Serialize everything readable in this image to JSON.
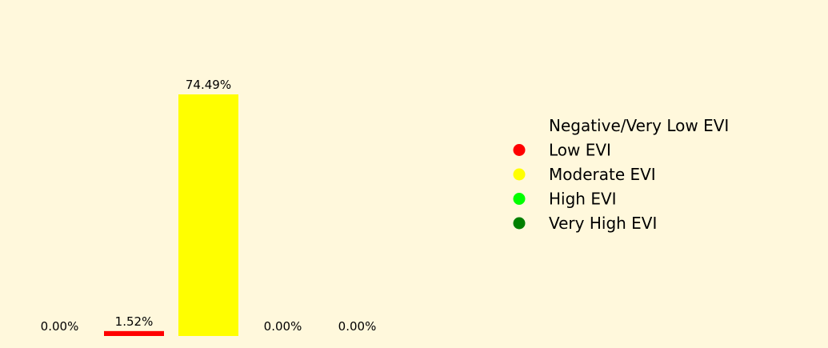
{
  "chart_data": {
    "type": "bar",
    "categories": [
      "Negative/Very Low EVI",
      "Low EVI",
      "Moderate EVI",
      "High EVI",
      "Very High EVI"
    ],
    "values": [
      0.0,
      1.52,
      74.49,
      0.0,
      0.0
    ],
    "value_labels": [
      "0.00%",
      "1.52%",
      "74.49%",
      "0.00%",
      "0.00%"
    ],
    "colors": [
      "#fff8dc",
      "#ff0000",
      "#ffff00",
      "#00ff00",
      "#008000"
    ],
    "ylim": [
      0,
      80
    ],
    "grid": false,
    "axes_visible": false,
    "legend": {
      "placement": "right",
      "entries": [
        {
          "label": "Negative/Very Low EVI",
          "color": "#fff8dc"
        },
        {
          "label": "Low EVI",
          "color": "#ff0000"
        },
        {
          "label": "Moderate EVI",
          "color": "#ffff00"
        },
        {
          "label": "High EVI",
          "color": "#00ff00"
        },
        {
          "label": "Very High EVI",
          "color": "#008000"
        }
      ]
    }
  }
}
